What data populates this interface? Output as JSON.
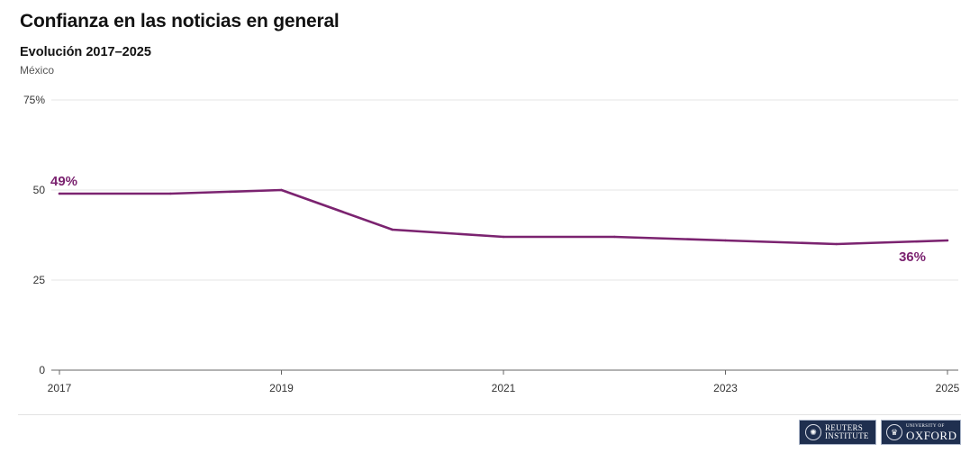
{
  "header": {
    "title": "Confianza en las noticias en general",
    "subtitle": "Evolución 2017–2025",
    "region": "México"
  },
  "chart_data": {
    "type": "line",
    "x": [
      2017,
      2018,
      2019,
      2020,
      2021,
      2022,
      2023,
      2024,
      2025
    ],
    "series": [
      {
        "values": [
          49,
          49,
          50,
          39,
          37,
          37,
          36,
          35,
          36
        ],
        "color": "#7b2370"
      }
    ],
    "ylim": [
      0,
      75
    ],
    "y_ticks": [
      0,
      25,
      50,
      75
    ],
    "y_tick_labels": [
      "0",
      "25",
      "50",
      "75%"
    ],
    "x_ticks": [
      2017,
      2019,
      2021,
      2023,
      2025
    ],
    "x_tick_labels": [
      "2017",
      "2019",
      "2021",
      "2023",
      "2025"
    ],
    "data_labels": [
      {
        "x": 2017,
        "text": "49%"
      },
      {
        "x": 2025,
        "text": "36%"
      }
    ],
    "grid": true,
    "xlabel": "",
    "ylabel": ""
  },
  "footer": {
    "reuters_logo_line1": "REUTERS",
    "reuters_logo_line2": "INSTITUTE",
    "oxford_logo_small": "UNIVERSITY OF",
    "oxford_logo_big": "OXFORD"
  }
}
